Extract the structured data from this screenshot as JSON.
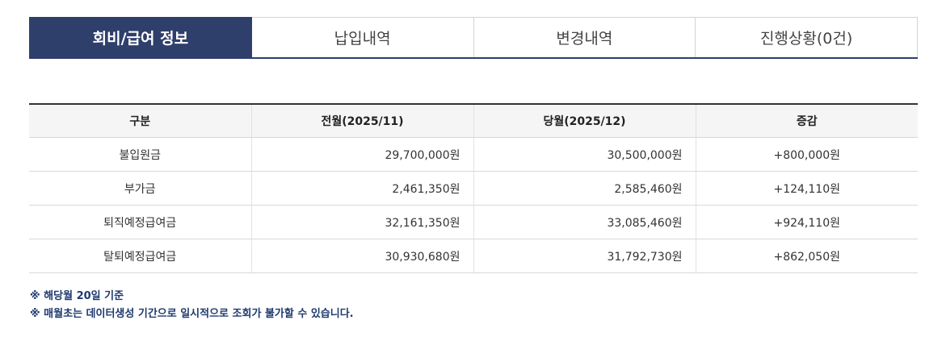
{
  "tabs": [
    {
      "label": "회비/급여 정보",
      "active": true
    },
    {
      "label": "납입내역",
      "active": false
    },
    {
      "label": "변경내역",
      "active": false
    },
    {
      "label": "진행상황(0건)",
      "active": false
    }
  ],
  "table": {
    "headers": [
      "구분",
      "전월(2025/11)",
      "당월(2025/12)",
      "증감"
    ],
    "rows": [
      [
        "불입원금",
        "29,700,000원",
        "30,500,000원",
        "+800,000원"
      ],
      [
        "부가금",
        "2,461,350원",
        "2,585,460원",
        "+124,110원"
      ],
      [
        "퇴직예정급여금",
        "32,161,350원",
        "33,085,460원",
        "+924,110원"
      ],
      [
        "탈퇴예정급여금",
        "30,930,680원",
        "31,792,730원",
        "+862,050원"
      ]
    ]
  },
  "notes": [
    "※ 해당월 20일 기준",
    "※ 매월초는 데이터생성 기간으로 일시적으로 조회가 불가할 수 있습니다."
  ],
  "colors": {
    "active_tab": "#2f3f6b",
    "note_text": "#1e3a6e"
  }
}
